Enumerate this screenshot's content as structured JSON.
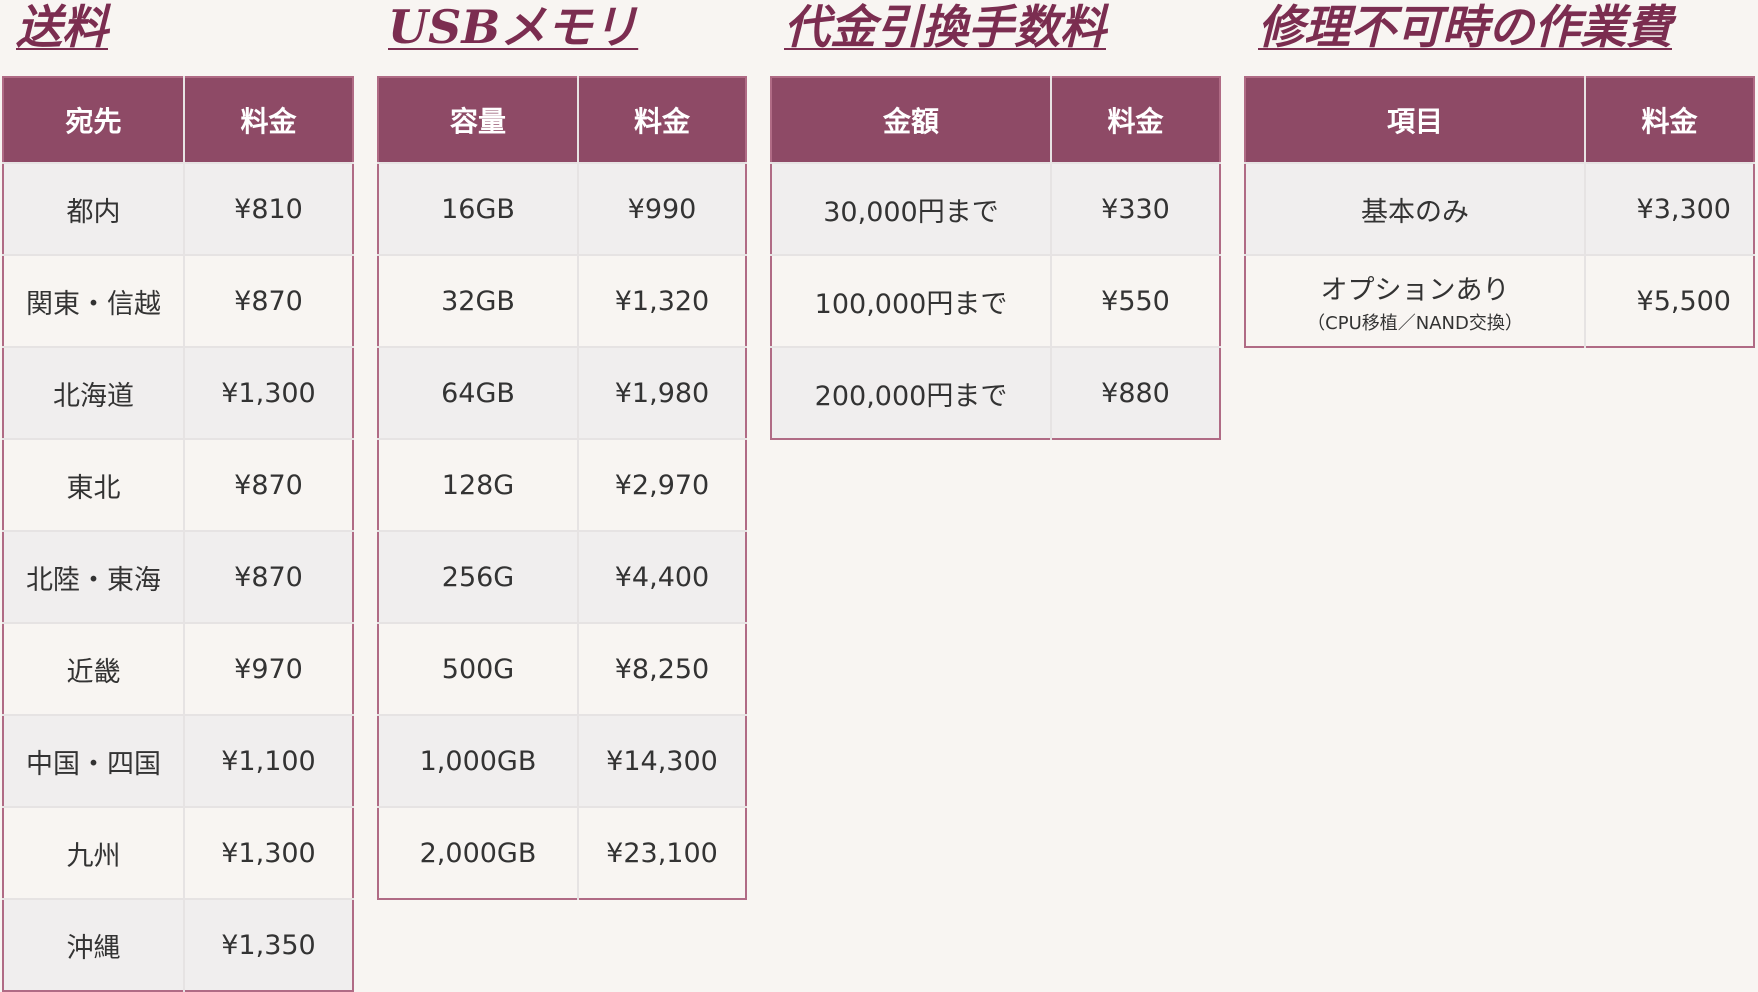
{
  "shipping": {
    "title": "送料",
    "headers": [
      "宛先",
      "料金"
    ],
    "rows": [
      [
        "都内",
        "¥810"
      ],
      [
        "関東・信越",
        "¥870"
      ],
      [
        "北海道",
        "¥1,300"
      ],
      [
        "東北",
        "¥870"
      ],
      [
        "北陸・東海",
        "¥870"
      ],
      [
        "近畿",
        "¥970"
      ],
      [
        "中国・四国",
        "¥1,100"
      ],
      [
        "九州",
        "¥1,300"
      ],
      [
        "沖縄",
        "¥1,350"
      ]
    ]
  },
  "usb": {
    "title": "USBメモリ",
    "headers": [
      "容量",
      "料金"
    ],
    "rows": [
      [
        "16GB",
        "¥990"
      ],
      [
        "32GB",
        "¥1,320"
      ],
      [
        "64GB",
        "¥1,980"
      ],
      [
        "128G",
        "¥2,970"
      ],
      [
        "256G",
        "¥4,400"
      ],
      [
        "500G",
        "¥8,250"
      ],
      [
        "1,000GB",
        "¥14,300"
      ],
      [
        "2,000GB",
        "¥23,100"
      ]
    ]
  },
  "cod": {
    "title": "代金引換手数料",
    "headers": [
      "金額",
      "料金"
    ],
    "rows": [
      [
        "30,000円まで",
        "¥330"
      ],
      [
        "100,000円まで",
        "¥550"
      ],
      [
        "200,000円まで",
        "¥880"
      ]
    ]
  },
  "repair": {
    "title": "修理不可時の作業費",
    "headers": [
      "項目",
      "料金"
    ],
    "rows": [
      {
        "item": "基本のみ",
        "sub": "",
        "price": "¥3,300"
      },
      {
        "item": "オプションあり",
        "sub": "（CPU移植／NAND交換）",
        "price": "¥5,500"
      }
    ]
  },
  "colors": {
    "header": "#8e4a66",
    "title": "#7b2d50",
    "border": "#b06b85",
    "background": "#f8f5f2"
  }
}
